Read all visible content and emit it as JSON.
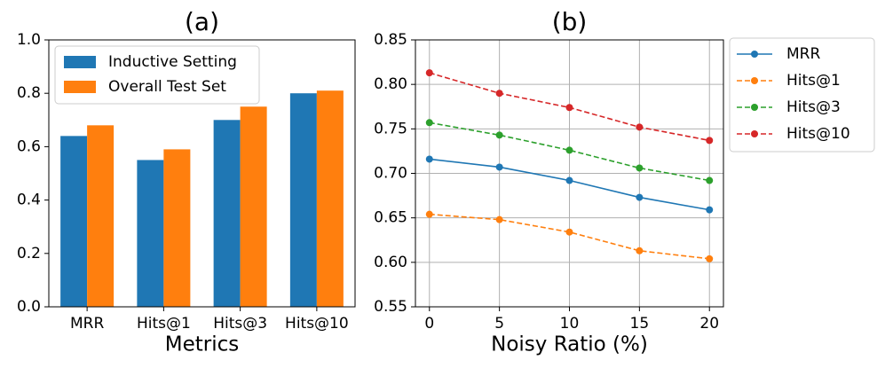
{
  "chart_data": [
    {
      "type": "bar",
      "title": "(a)",
      "x_label": "Metrics",
      "categories": [
        "MRR",
        "Hits@1",
        "Hits@3",
        "Hits@10"
      ],
      "series": [
        {
          "name": "Inductive Setting",
          "color": "#1f77b4",
          "values": [
            0.64,
            0.55,
            0.7,
            0.8
          ]
        },
        {
          "name": "Overall Test Set",
          "color": "#ff7f0e",
          "values": [
            0.68,
            0.59,
            0.75,
            0.81
          ]
        }
      ],
      "ylim": [
        0,
        1.0
      ],
      "yticks": [
        {
          "value": 0,
          "label": "0.0"
        },
        0.2,
        0.4,
        0.6,
        0.8,
        {
          "value": 1.0,
          "label": "1.0"
        }
      ],
      "grid": false,
      "legend": "upper left"
    },
    {
      "type": "line",
      "title": "(b)",
      "x_label": "Noisy Ratio (%)",
      "x": [
        0,
        5,
        10,
        15,
        20
      ],
      "series": [
        {
          "name": "MRR",
          "color": "#1f77b4",
          "linestyle": "solid",
          "values": [
            0.716,
            0.707,
            0.692,
            0.673,
            0.659
          ]
        },
        {
          "name": "Hits@1",
          "color": "#ff7f0e",
          "linestyle": "dashed",
          "values": [
            0.654,
            0.648,
            0.634,
            0.613,
            0.604
          ]
        },
        {
          "name": "Hits@3",
          "color": "#2ca02c",
          "linestyle": "dashed",
          "values": [
            0.757,
            0.743,
            0.726,
            0.706,
            0.692
          ]
        },
        {
          "name": "Hits@10",
          "color": "#d62728",
          "linestyle": "dashed",
          "values": [
            0.813,
            0.79,
            0.774,
            0.752,
            0.737
          ]
        }
      ],
      "xlim": [
        -1,
        21
      ],
      "xticks": [
        0,
        5,
        10,
        15,
        20
      ],
      "ylim": [
        0.55,
        0.85
      ],
      "yticks": [
        0.55,
        {
          "value": 0.6,
          "label": "0.60"
        },
        0.65,
        {
          "value": 0.7,
          "label": "0.70"
        },
        0.75,
        {
          "value": 0.8,
          "label": "0.80"
        },
        0.85
      ],
      "grid": true,
      "legend": "outside right"
    }
  ]
}
